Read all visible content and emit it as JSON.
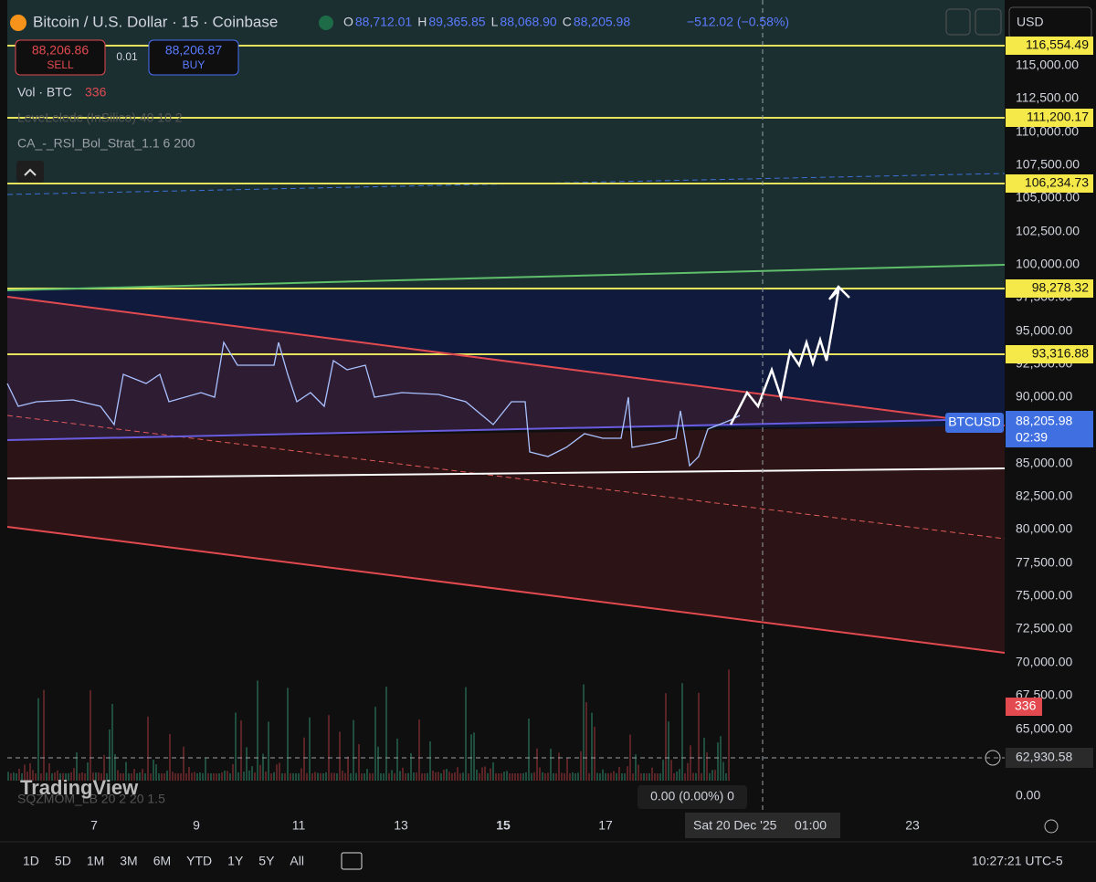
{
  "header": {
    "symbol": "Bitcoin / U.S. Dollar · 15 · Coinbase",
    "ohlc": [
      {
        "key": "O",
        "value": "88,712.01"
      },
      {
        "key": "H",
        "value": "89,365.85"
      },
      {
        "key": "L",
        "value": "88,068.90"
      },
      {
        "key": "C",
        "value": "88,205.98"
      }
    ],
    "change": "−512.02 (−0.58%)",
    "currency": "USD"
  },
  "trade": {
    "sell_price": "88,206.86",
    "sell": "SELL",
    "spread": "0.01",
    "buy_price": "88,206.87",
    "buy": "BUY"
  },
  "indicators": {
    "volume_label": "Vol · BTC",
    "volume_value": "336",
    "items": [
      "LeveLeledc (InSilico) 40 10 2",
      "CA_-_RSI_Bol_Strat_1.1 6 200"
    ],
    "bottom": "SQZMOM_LB 20 2 20 1.5"
  },
  "price_axis": {
    "ticks": [
      "115,000.00",
      "112,500.00",
      "110,000.00",
      "107,500.00",
      "105,000.00",
      "102,500.00",
      "100,000.00",
      "97,500.00",
      "95,000.00",
      "92,500.00",
      "90,000.00",
      "85,000.00",
      "82,500.00",
      "80,000.00",
      "77,500.00",
      "75,000.00",
      "72,500.00",
      "70,000.00",
      "67,500.00",
      "65,000.00"
    ],
    "lower": "0.00",
    "levels": [
      "116,554.49",
      "111,200.17",
      "106,234.73",
      "98,278.32",
      "93,316.88"
    ],
    "last": {
      "symbol": "BTCUSD",
      "price": "88,205.98",
      "countdown": "02:39"
    },
    "volume_tag": "336",
    "crosshair": "62,930.58"
  },
  "time_axis": {
    "ticks": [
      "7",
      "9",
      "11",
      "13",
      "15",
      "17",
      "23"
    ],
    "crosshair_date": "Sat 20 Dec '25",
    "crosshair_time": "01:00"
  },
  "tooltip": "0.00 (0.00%) 0",
  "logo": "TradingView",
  "footer": {
    "ranges": [
      "1D",
      "5D",
      "1M",
      "3M",
      "6M",
      "YTD",
      "1Y",
      "5Y",
      "All"
    ],
    "clock": "10:27:21 UTC-5"
  }
}
